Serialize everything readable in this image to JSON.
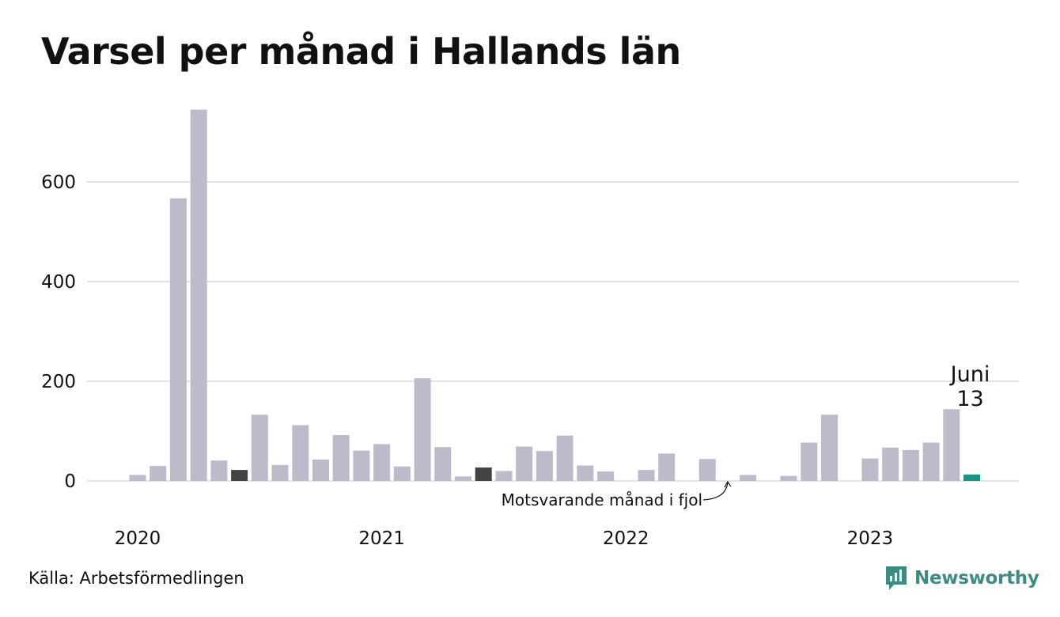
{
  "title": "Varsel per månad i Hallands län",
  "source": "Källa: Arbetsförmedlingen",
  "brand": {
    "name": "Newsworthy"
  },
  "annotations": {
    "latest_month": "Juni",
    "latest_value": "13",
    "same_month_last_year": "Motsvarande månad i fjol"
  },
  "colors": {
    "bar": "#bdbbca",
    "highlight_prior_years": "#444444",
    "latest": "#1a9483",
    "grid": "#e2e2e2",
    "brand": "#3d8c82"
  },
  "chart_data": {
    "type": "bar",
    "title": "Varsel per månad i Hallands län",
    "xlabel": "",
    "ylabel": "",
    "ylim": [
      0,
      760
    ],
    "yticks": [
      0,
      200,
      400,
      600
    ],
    "xtick_labels": [
      "2020",
      "2021",
      "2022",
      "2023"
    ],
    "grid": true,
    "categories": [
      "2020-01",
      "2020-02",
      "2020-03",
      "2020-04",
      "2020-05",
      "2020-06",
      "2020-07",
      "2020-08",
      "2020-09",
      "2020-10",
      "2020-11",
      "2020-12",
      "2021-01",
      "2021-02",
      "2021-03",
      "2021-04",
      "2021-05",
      "2021-06",
      "2021-07",
      "2021-08",
      "2021-09",
      "2021-10",
      "2021-11",
      "2021-12",
      "2022-01",
      "2022-02",
      "2022-03",
      "2022-04",
      "2022-05",
      "2022-06",
      "2022-07",
      "2022-08",
      "2022-09",
      "2022-10",
      "2022-11",
      "2022-12",
      "2023-01",
      "2023-02",
      "2023-03",
      "2023-04",
      "2023-05",
      "2023-06"
    ],
    "values": [
      12,
      30,
      567,
      745,
      41,
      22,
      133,
      32,
      112,
      43,
      92,
      61,
      74,
      29,
      206,
      68,
      9,
      27,
      20,
      69,
      60,
      91,
      31,
      19,
      0,
      22,
      55,
      0,
      44,
      0,
      12,
      0,
      10,
      77,
      133,
      0,
      45,
      67,
      62,
      77,
      144,
      13
    ],
    "highlighted": [
      "2020-06",
      "2021-06",
      "2022-06"
    ],
    "latest": "2023-06"
  }
}
